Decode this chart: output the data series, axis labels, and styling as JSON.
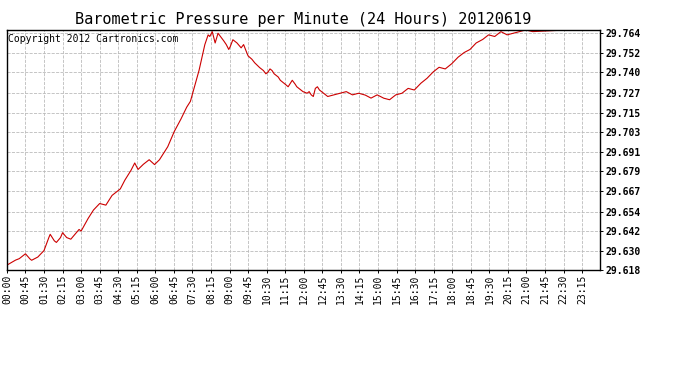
{
  "title": "Barometric Pressure per Minute (24 Hours) 20120619",
  "copyright_text": "Copyright 2012 Cartronics.com",
  "line_color": "#cc0000",
  "background_color": "#ffffff",
  "grid_color": "#bbbbbb",
  "ylim": [
    29.618,
    29.766
  ],
  "yticks": [
    29.618,
    29.63,
    29.642,
    29.654,
    29.667,
    29.679,
    29.691,
    29.703,
    29.715,
    29.727,
    29.74,
    29.752,
    29.764
  ],
  "xtick_labels": [
    "00:00",
    "00:45",
    "01:30",
    "02:15",
    "03:00",
    "03:45",
    "04:30",
    "05:15",
    "06:00",
    "06:45",
    "07:30",
    "08:15",
    "09:00",
    "09:45",
    "10:30",
    "11:15",
    "12:00",
    "12:45",
    "13:30",
    "14:15",
    "15:00",
    "15:45",
    "16:30",
    "17:15",
    "18:00",
    "18:45",
    "19:30",
    "20:15",
    "21:00",
    "21:45",
    "22:30",
    "23:15"
  ],
  "title_fontsize": 11,
  "tick_fontsize": 7,
  "copyright_fontsize": 7,
  "data_keypoints": [
    [
      0,
      29.621
    ],
    [
      20,
      29.624
    ],
    [
      30,
      29.625
    ],
    [
      45,
      29.628
    ],
    [
      55,
      29.625
    ],
    [
      60,
      29.624
    ],
    [
      75,
      29.626
    ],
    [
      90,
      29.63
    ],
    [
      100,
      29.637
    ],
    [
      105,
      29.64
    ],
    [
      115,
      29.636
    ],
    [
      120,
      29.635
    ],
    [
      130,
      29.638
    ],
    [
      135,
      29.641
    ],
    [
      145,
      29.638
    ],
    [
      155,
      29.637
    ],
    [
      165,
      29.64
    ],
    [
      175,
      29.643
    ],
    [
      180,
      29.642
    ],
    [
      195,
      29.649
    ],
    [
      210,
      29.655
    ],
    [
      225,
      29.659
    ],
    [
      240,
      29.658
    ],
    [
      255,
      29.664
    ],
    [
      265,
      29.666
    ],
    [
      275,
      29.668
    ],
    [
      285,
      29.673
    ],
    [
      300,
      29.679
    ],
    [
      310,
      29.684
    ],
    [
      318,
      29.68
    ],
    [
      330,
      29.683
    ],
    [
      345,
      29.686
    ],
    [
      358,
      29.683
    ],
    [
      370,
      29.686
    ],
    [
      390,
      29.694
    ],
    [
      405,
      29.703
    ],
    [
      420,
      29.71
    ],
    [
      435,
      29.718
    ],
    [
      445,
      29.722
    ],
    [
      455,
      29.731
    ],
    [
      465,
      29.74
    ],
    [
      472,
      29.748
    ],
    [
      480,
      29.757
    ],
    [
      488,
      29.763
    ],
    [
      492,
      29.762
    ],
    [
      498,
      29.765
    ],
    [
      505,
      29.758
    ],
    [
      512,
      29.764
    ],
    [
      518,
      29.762
    ],
    [
      524,
      29.76
    ],
    [
      532,
      29.757
    ],
    [
      538,
      29.754
    ],
    [
      542,
      29.756
    ],
    [
      548,
      29.76
    ],
    [
      558,
      29.758
    ],
    [
      568,
      29.755
    ],
    [
      574,
      29.757
    ],
    [
      580,
      29.753
    ],
    [
      585,
      29.75
    ],
    [
      594,
      29.748
    ],
    [
      600,
      29.746
    ],
    [
      612,
      29.743
    ],
    [
      622,
      29.741
    ],
    [
      628,
      29.739
    ],
    [
      633,
      29.74
    ],
    [
      638,
      29.742
    ],
    [
      643,
      29.741
    ],
    [
      648,
      29.739
    ],
    [
      658,
      29.737
    ],
    [
      663,
      29.735
    ],
    [
      668,
      29.734
    ],
    [
      673,
      29.733
    ],
    [
      682,
      29.731
    ],
    [
      692,
      29.735
    ],
    [
      698,
      29.733
    ],
    [
      703,
      29.731
    ],
    [
      708,
      29.73
    ],
    [
      713,
      29.729
    ],
    [
      718,
      29.728
    ],
    [
      728,
      29.727
    ],
    [
      733,
      29.728
    ],
    [
      738,
      29.726
    ],
    [
      743,
      29.725
    ],
    [
      748,
      29.73
    ],
    [
      753,
      29.731
    ],
    [
      758,
      29.729
    ],
    [
      763,
      29.728
    ],
    [
      773,
      29.726
    ],
    [
      778,
      29.725
    ],
    [
      793,
      29.726
    ],
    [
      808,
      29.727
    ],
    [
      823,
      29.728
    ],
    [
      838,
      29.726
    ],
    [
      853,
      29.727
    ],
    [
      868,
      29.726
    ],
    [
      883,
      29.724
    ],
    [
      898,
      29.726
    ],
    [
      913,
      29.724
    ],
    [
      928,
      29.723
    ],
    [
      943,
      29.726
    ],
    [
      958,
      29.727
    ],
    [
      973,
      29.73
    ],
    [
      988,
      29.729
    ],
    [
      1003,
      29.733
    ],
    [
      1018,
      29.736
    ],
    [
      1033,
      29.74
    ],
    [
      1048,
      29.743
    ],
    [
      1063,
      29.742
    ],
    [
      1078,
      29.745
    ],
    [
      1093,
      29.749
    ],
    [
      1108,
      29.752
    ],
    [
      1123,
      29.754
    ],
    [
      1138,
      29.758
    ],
    [
      1153,
      29.76
    ],
    [
      1168,
      29.763
    ],
    [
      1183,
      29.762
    ],
    [
      1198,
      29.765
    ],
    [
      1213,
      29.763
    ],
    [
      1228,
      29.764
    ],
    [
      1243,
      29.765
    ],
    [
      1258,
      29.766
    ],
    [
      1275,
      29.765
    ],
    [
      1350,
      29.766
    ],
    [
      1439,
      29.766
    ]
  ]
}
